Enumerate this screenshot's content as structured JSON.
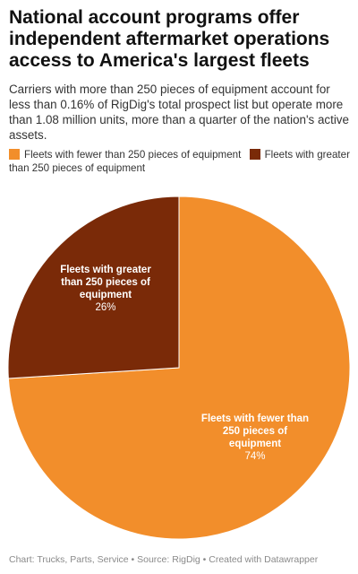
{
  "title": "National account programs offer independent aftermarket operations access to America's largest fleets",
  "subtitle": "Carriers with more than 250 pieces of equipment account for less than 0.16% of RigDig's total prospect list but operate more than 1.08 million units, more than a quarter of the nation's active assets.",
  "footer": "Chart: Trucks, Parts, Service • Source: RigDig • Created with Datawrapper",
  "colors": {
    "fewer": "#F28E2B",
    "greater": "#7A2A08"
  },
  "chart_data": {
    "type": "pie",
    "title": "National account programs offer independent aftermarket operations access to America's largest fleets",
    "subtitle": "Carriers with more than 250 pieces of equipment account for less than 0.16% of RigDig's total prospect list but operate more than 1.08 million units, more than a quarter of the nation's active assets.",
    "legend_position": "top",
    "slices": [
      {
        "name": "Fleets with fewer than 250 pieces of equipment",
        "value": 74,
        "label_lines": [
          "Fleets with fewer than",
          "250 pieces of",
          "equipment"
        ],
        "value_label": "74%",
        "color": "#F28E2B"
      },
      {
        "name": "Fleets with greater than 250 pieces of equipment",
        "value": 26,
        "label_lines": [
          "Fleets with greater",
          "than 250 pieces of",
          "equipment"
        ],
        "value_label": "26%",
        "color": "#7A2A08"
      }
    ]
  }
}
